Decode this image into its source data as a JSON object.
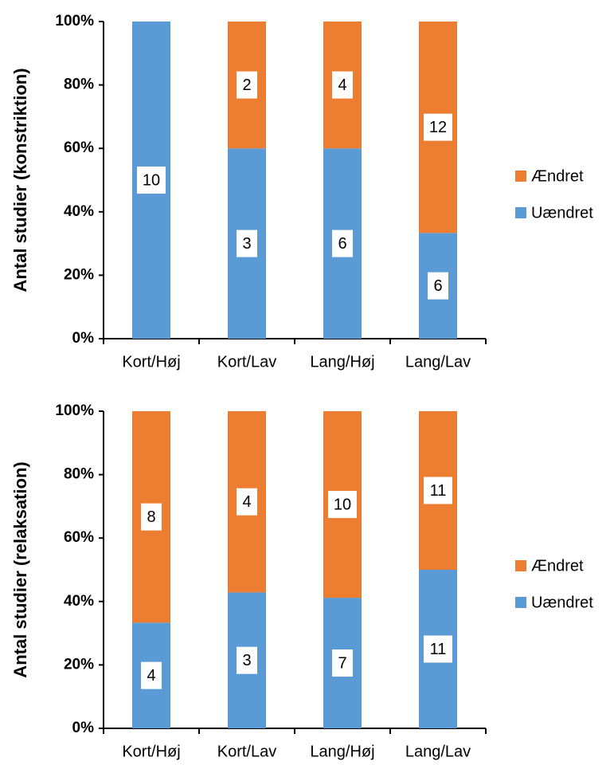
{
  "chart_data": [
    {
      "type": "bar",
      "stacking": "percent",
      "y_label": "Antal studier (konstriktion)",
      "categories": [
        "Kort/Høj",
        "Kort/Lav",
        "Lang/Høj",
        "Lang/Lav"
      ],
      "series": [
        {
          "name": "Uændret",
          "color": "#5b9bd5",
          "values": [
            10,
            3,
            6,
            6
          ]
        },
        {
          "name": "Ændret",
          "color": "#ed7d31",
          "values": [
            0,
            2,
            4,
            12
          ]
        }
      ],
      "ylim": [
        0,
        100
      ],
      "yticks": [
        {
          "value": 0,
          "label": "0%"
        },
        {
          "value": 20,
          "label": "20%"
        },
        {
          "value": 40,
          "label": "40%"
        },
        {
          "value": 60,
          "label": "60%"
        },
        {
          "value": 80,
          "label": "80%"
        },
        {
          "value": 100,
          "label": "100%"
        }
      ],
      "legend": "right",
      "grid": false
    },
    {
      "type": "bar",
      "stacking": "percent",
      "y_label": "Antal studier (relaksation)",
      "categories": [
        "Kort/Høj",
        "Kort/Lav",
        "Lang/Høj",
        "Lang/Lav"
      ],
      "series": [
        {
          "name": "Uændret",
          "color": "#5b9bd5",
          "values": [
            4,
            3,
            7,
            11
          ]
        },
        {
          "name": "Ændret",
          "color": "#ed7d31",
          "values": [
            8,
            4,
            10,
            11
          ]
        }
      ],
      "ylim": [
        0,
        100
      ],
      "yticks": [
        {
          "value": 0,
          "label": "0%"
        },
        {
          "value": 20,
          "label": "20%"
        },
        {
          "value": 40,
          "label": "40%"
        },
        {
          "value": 60,
          "label": "60%"
        },
        {
          "value": 80,
          "label": "80%"
        },
        {
          "value": 100,
          "label": "100%"
        }
      ],
      "legend": "right",
      "grid": false
    }
  ]
}
